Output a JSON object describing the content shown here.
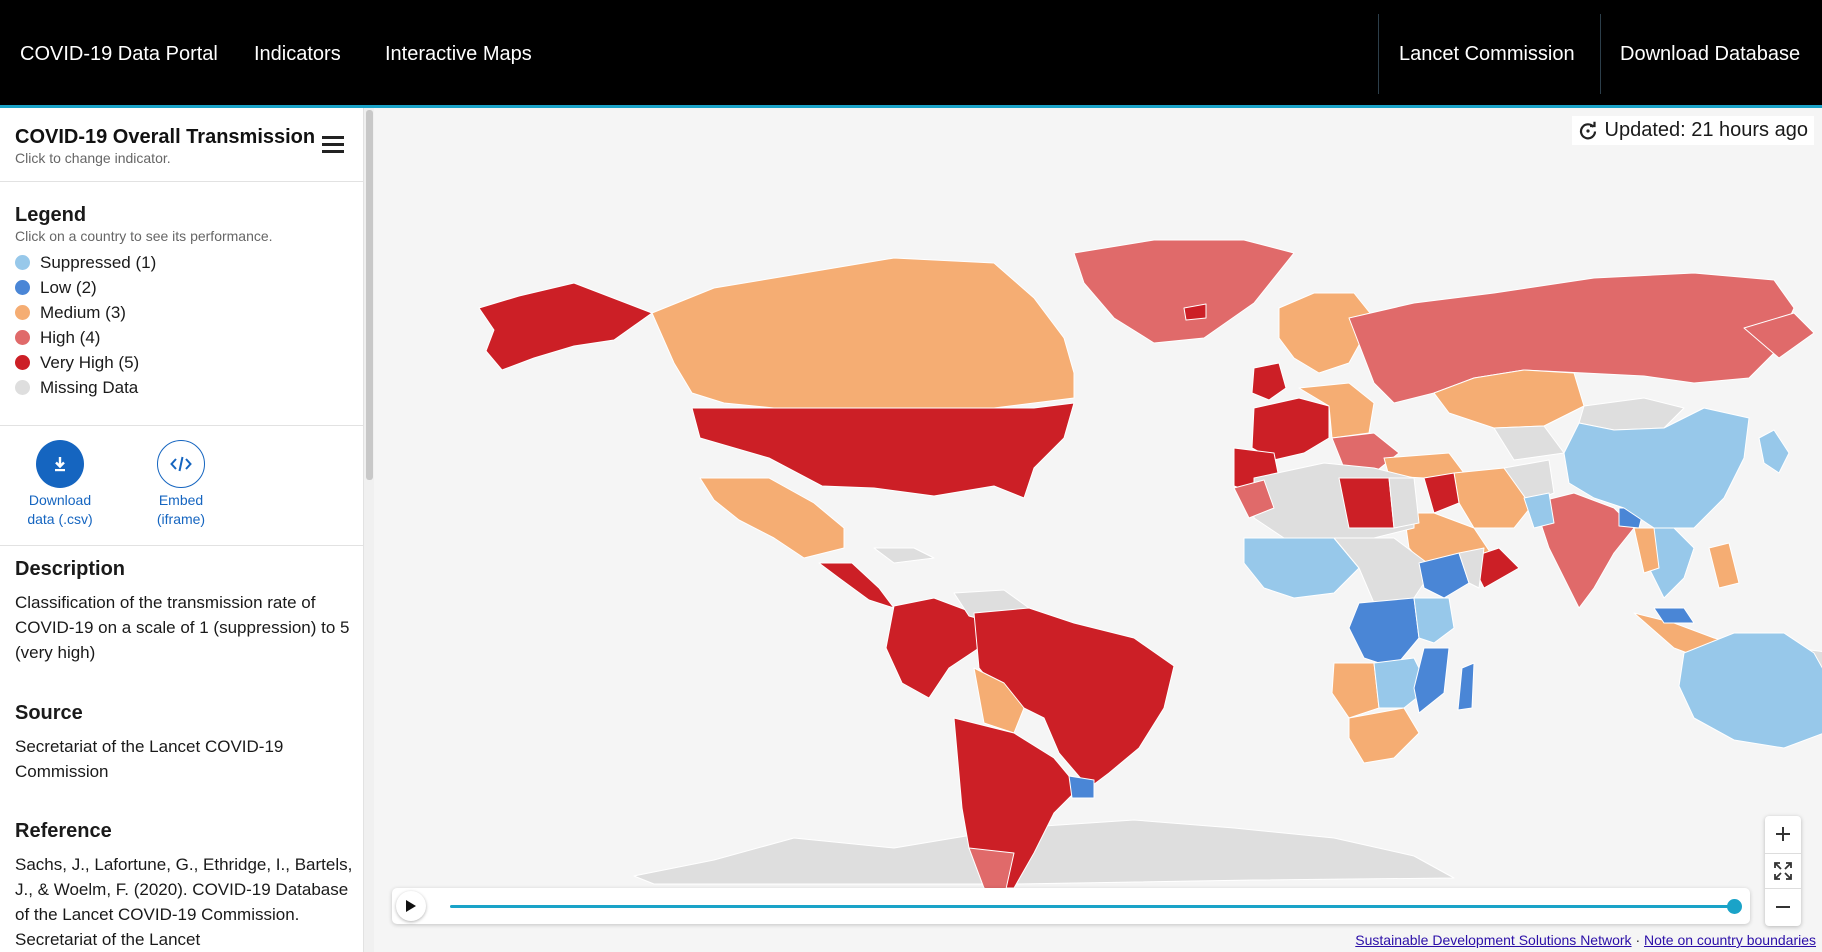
{
  "nav": {
    "brand": "COVID-19 Data Portal",
    "items": [
      "Indicators",
      "Interactive Maps"
    ],
    "right_items": [
      "Lancet Commission",
      "Download Database"
    ]
  },
  "indicator": {
    "title": "COVID-19 Overall Transmission",
    "subtitle": "Click to change indicator."
  },
  "legend": {
    "title": "Legend",
    "subtitle": "Click on a country to see its performance.",
    "items": [
      {
        "label": "Suppressed (1)",
        "color": "#97c8ea"
      },
      {
        "label": "Low (2)",
        "color": "#4a86d6"
      },
      {
        "label": "Medium (3)",
        "color": "#f5ad73"
      },
      {
        "label": "High (4)",
        "color": "#e06a6a"
      },
      {
        "label": "Very High (5)",
        "color": "#cc1f26"
      },
      {
        "label": "Missing Data",
        "color": "#dedede"
      }
    ]
  },
  "actions": {
    "download_line1": "Download",
    "download_line2": "data (.csv)",
    "embed_line1": "Embed",
    "embed_line2": "(iframe)"
  },
  "description": {
    "heading": "Description",
    "text": "Classification of the transmission rate of COVID-19 on a scale of 1 (suppression) to 5 (very high)"
  },
  "source": {
    "heading": "Source",
    "text": "Secretariat of the Lancet COVID-19 Commission"
  },
  "reference": {
    "heading": "Reference",
    "text": "Sachs, J., Lafortune, G., Ethridge, I., Bartels, J., & Woelm, F. (2020). COVID-19 Database of the Lancet COVID-19 Commission. Secretariat of the Lancet"
  },
  "map": {
    "updated": "Updated: 21 hours ago",
    "background": "#f5f5f5"
  },
  "footer": {
    "link1": "Sustainable Development Solutions Network",
    "separator": "·",
    "link2": "Note on country boundaries"
  }
}
